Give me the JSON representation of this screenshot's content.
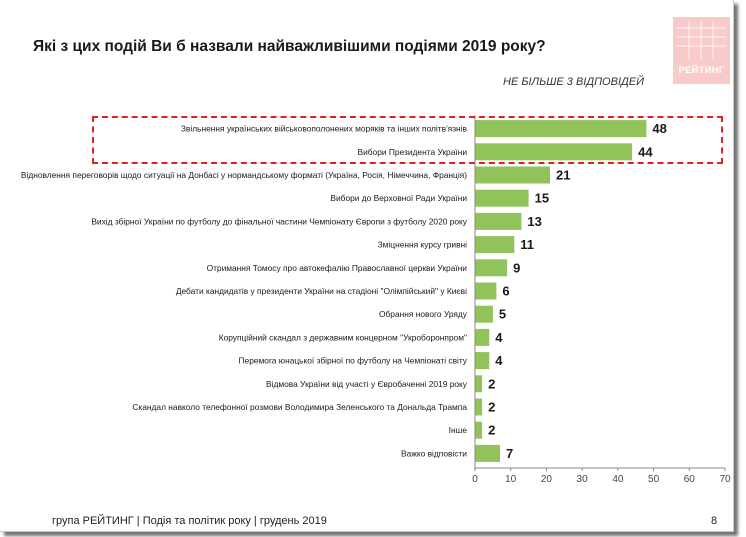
{
  "slide": {
    "title": "Які з цих подій Ви б назвали найважливішими подіями 2019 року?",
    "note": "НЕ БІЛЬШЕ 3 ВІДПОВІДЕЙ",
    "logo_text": "РЕЙТИНГ",
    "footer": "група РЕЙТИНГ | Подія та політик року | грудень 2019",
    "page_number": "8"
  },
  "colors": {
    "bar": "#92c35a",
    "axis": "#8a8a8a",
    "highlight": "#e0211c",
    "logo": "#f8caca"
  },
  "chart_data": {
    "type": "bar",
    "orientation": "horizontal",
    "categories": [
      "Звільнення українських військовополонених моряків та інших політв'язнів",
      "Вибори Президента України",
      "Відновлення переговорів щодо ситуації на Донбасі у нормандському форматі (Україна, Росія, Німеччина, Франція)",
      "Вибори до Верховної Ради України",
      "Вихід збірної України по футболу до фінальної частини Чемпіонату Європи з футболу 2020 року",
      "Зміцнення курсу гривні",
      "Отримання Томосу про автокефалію Православної церкви України",
      "Дебати кандидатів у президенти України на стадіоні \"Олімпійський\" у Києві",
      "Обрання нового Уряду",
      "Корупційний скандал з державним концерном \"Укроборонпром\"",
      "Перемога юнацької збірної по футболу на Чемпіонаті світу",
      "Відмова України від участі у Євробаченні 2019 року",
      "Скандал навколо телефонної розмови Володимира Зеленського та Дональда Трампа",
      "Інше",
      "Важко відповісти"
    ],
    "values": [
      48,
      44,
      21,
      15,
      13,
      11,
      9,
      6,
      5,
      4,
      4,
      2,
      2,
      2,
      7
    ],
    "value_labels": [
      "48",
      "44",
      "21",
      "15",
      "13",
      "11",
      "9",
      "6",
      "5",
      "4",
      "4",
      "2",
      "2",
      "2",
      "7"
    ],
    "highlighted": [
      0,
      1
    ],
    "xlim": [
      0,
      70
    ],
    "x_ticks": [
      0,
      10,
      20,
      30,
      40,
      50,
      60,
      70
    ],
    "x_tick_labels": [
      "0",
      "10",
      "20",
      "30",
      "40",
      "50",
      "60",
      "70"
    ],
    "title": "",
    "xlabel": "",
    "ylabel": "",
    "grid": false,
    "legend": "none"
  }
}
